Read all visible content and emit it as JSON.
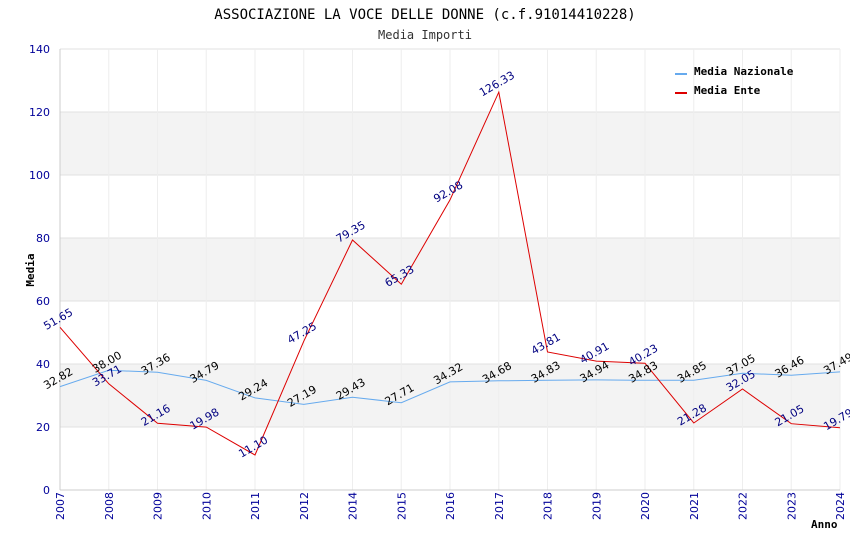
{
  "chart_data": {
    "type": "line",
    "title": "ASSOCIAZIONE LA VOCE DELLE DONNE (c.f.91014410228)",
    "subtitle": "Media Importi",
    "xlabel": "Anno",
    "ylabel": "Media",
    "ylim": [
      0,
      140
    ],
    "yticks": [
      "0",
      "20",
      "40",
      "60",
      "80",
      "100",
      "120",
      "140"
    ],
    "grid": true,
    "legend_position": "top-right",
    "categories": [
      "2007",
      "2008",
      "2009",
      "2010",
      "2011",
      "2012",
      "2014",
      "2015",
      "2016",
      "2017",
      "2018",
      "2019",
      "2020",
      "2021",
      "2022",
      "2023",
      "2024"
    ],
    "series": [
      {
        "name": "Media Nazionale",
        "color": "#66aaee",
        "label_color": "#000000",
        "values": [
          32.82,
          38.0,
          37.36,
          34.79,
          29.24,
          27.19,
          29.43,
          27.71,
          34.32,
          34.68,
          34.83,
          34.94,
          34.83,
          34.85,
          37.05,
          36.46,
          37.49
        ],
        "labels": [
          "32.82",
          "38.00",
          "37.36",
          "34.79",
          "29.24",
          "27.19",
          "29.43",
          "27.71",
          "34.32",
          "34.68",
          "34.83",
          "34.94",
          "34.83",
          "34.85",
          "37.05",
          "36.46",
          "37.49"
        ]
      },
      {
        "name": "Media Ente",
        "color": "#dd0000",
        "label_color": "#000080",
        "values": [
          51.65,
          33.71,
          21.16,
          19.98,
          11.1,
          47.25,
          79.35,
          65.33,
          92.08,
          126.33,
          43.81,
          40.91,
          40.23,
          21.28,
          32.05,
          21.05,
          19.79
        ],
        "labels": [
          "51.65",
          "33.71",
          "21.16",
          "19.98",
          "11.10",
          "47.25",
          "79.35",
          "65.33",
          "92.08",
          "126.33",
          "43.81",
          "40.91",
          "40.23",
          "21.28",
          "32.05",
          "21.05",
          "19.79"
        ]
      }
    ]
  }
}
